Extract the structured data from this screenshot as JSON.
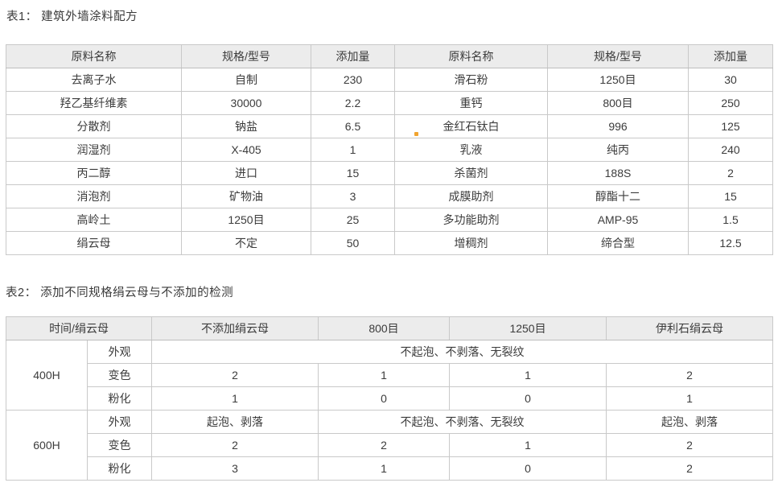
{
  "table1": {
    "title": "表1： 建筑外墙涂料配方",
    "headers": [
      "原料名称",
      "规格/型号",
      "添加量",
      "原料名称",
      "规格/型号",
      "添加量"
    ],
    "rows": [
      [
        "去离子水",
        "自制",
        "230",
        "滑石粉",
        "1250目",
        "30"
      ],
      [
        "羟乙基纤维素",
        "30000",
        "2.2",
        "重钙",
        "800目",
        "250"
      ],
      [
        "分散剂",
        "钠盐",
        "6.5",
        "金红石钛白",
        "996",
        "125"
      ],
      [
        "润湿剂",
        "X-405",
        "1",
        "乳液",
        "纯丙",
        "240"
      ],
      [
        "丙二醇",
        "进口",
        "15",
        "杀菌剂",
        "188S",
        "2"
      ],
      [
        "消泡剂",
        "矿物油",
        "3",
        "成膜助剂",
        "醇酯十二",
        "15"
      ],
      [
        "高岭土",
        "1250目",
        "25",
        "多功能助剂",
        "AMP-95",
        "1.5"
      ],
      [
        "绢云母",
        "不定",
        "50",
        "增稠剂",
        "缔合型",
        "12.5"
      ]
    ]
  },
  "table2": {
    "title": "表2： 添加不同规格绢云母与不添加的检测",
    "headers": [
      "时间/绢云母",
      "不添加绢云母",
      "800目",
      "1250目",
      "伊利石绢云母"
    ],
    "groups": [
      {
        "time": "400H",
        "rows": [
          {
            "label": "外观",
            "cells": [
              {
                "text": "不起泡、不剥落、无裂纹",
                "span": 4
              }
            ]
          },
          {
            "label": "变色",
            "cells": [
              {
                "text": "2"
              },
              {
                "text": "1"
              },
              {
                "text": "1"
              },
              {
                "text": "2"
              }
            ]
          },
          {
            "label": "粉化",
            "cells": [
              {
                "text": "1"
              },
              {
                "text": "0"
              },
              {
                "text": "0"
              },
              {
                "text": "1"
              }
            ]
          }
        ]
      },
      {
        "time": "600H",
        "rows": [
          {
            "label": "外观",
            "cells": [
              {
                "text": "起泡、剥落",
                "span": 1
              },
              {
                "text": "不起泡、不剥落、无裂纹",
                "span": 2
              },
              {
                "text": "起泡、剥落",
                "span": 1
              }
            ]
          },
          {
            "label": "变色",
            "cells": [
              {
                "text": "2"
              },
              {
                "text": "2"
              },
              {
                "text": "1"
              },
              {
                "text": "2"
              }
            ]
          },
          {
            "label": "粉化",
            "cells": [
              {
                "text": "3"
              },
              {
                "text": "1"
              },
              {
                "text": "0"
              },
              {
                "text": "2"
              }
            ]
          }
        ]
      }
    ]
  },
  "marker": {
    "name": "orange-dot-marker",
    "color": "#f1a42f"
  }
}
